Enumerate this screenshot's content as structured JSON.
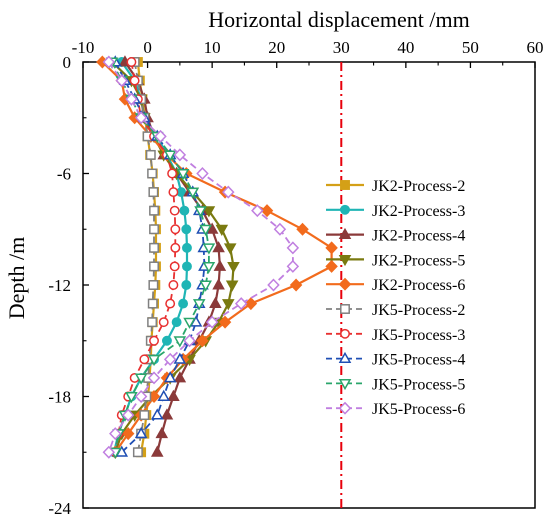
{
  "chart_data": {
    "type": "line",
    "xlabel": "Horizontal displacement /mm",
    "ylabel": "Depth /m",
    "xlim": [
      -10,
      60
    ],
    "ylim": [
      0,
      -24
    ],
    "x_ticks": [
      -10,
      0,
      10,
      20,
      30,
      40,
      50,
      60
    ],
    "y_ticks": [
      0,
      -6,
      -12,
      -18,
      -24
    ],
    "x_axis_position": "top",
    "grid": false,
    "legend_position": "right",
    "reference_line": {
      "x": 30,
      "color": "#e8000b",
      "style": "dash-dot"
    },
    "series": [
      {
        "name": "JK2-Process-2",
        "color": "#d4a017",
        "marker": "square",
        "filled": true,
        "dashed": false,
        "x": [
          -1.5,
          -1.2,
          -0.8,
          -0.4,
          0.0,
          0.4,
          0.8,
          1.0,
          1.2,
          1.3,
          1.3,
          1.3,
          1.2,
          1.0,
          0.8,
          0.6,
          0.5,
          0.3,
          0.1,
          -0.2,
          -0.5,
          -1.0
        ],
        "y": [
          0,
          -1,
          -2,
          -3,
          -4,
          -5,
          -6,
          -7,
          -8,
          -9,
          -10,
          -11,
          -12,
          -13,
          -14,
          -15,
          -16,
          -17,
          -18,
          -19,
          -20,
          -21
        ]
      },
      {
        "name": "JK2-Process-3",
        "color": "#1fb5b5",
        "marker": "circle",
        "filled": true,
        "dashed": false,
        "x": [
          -4.0,
          -2.0,
          -1.0,
          -0.5,
          1.5,
          3.0,
          4.5,
          5.2,
          5.7,
          6.0,
          6.1,
          6.1,
          6.0,
          5.5,
          4.5,
          3.0,
          1.0,
          -1.0,
          -2.5,
          -3.5,
          -4.5,
          -5.2
        ],
        "y": [
          0,
          -1,
          -2,
          -3,
          -4,
          -5,
          -6,
          -7,
          -8,
          -9,
          -10,
          -11,
          -12,
          -13,
          -14,
          -15,
          -16,
          -17,
          -18,
          -19,
          -20,
          -21
        ]
      },
      {
        "name": "JK2-Process-4",
        "color": "#8b3a3a",
        "marker": "triangle-up",
        "filled": true,
        "dashed": false,
        "x": [
          -3.5,
          -1.5,
          -0.5,
          0.0,
          1.0,
          2.5,
          4.5,
          6.5,
          8.5,
          10.0,
          11.0,
          11.2,
          11.0,
          10.5,
          9.5,
          8.0,
          6.5,
          5.0,
          4.0,
          3.0,
          2.2,
          1.5
        ],
        "y": [
          0,
          -1,
          -2,
          -3,
          -4,
          -5,
          -6,
          -7,
          -8,
          -9,
          -10,
          -11,
          -12,
          -13,
          -14,
          -15,
          -16,
          -17,
          -18,
          -19,
          -20,
          -21
        ]
      },
      {
        "name": "JK2-Process-5",
        "color": "#7a7a10",
        "marker": "triangle-down",
        "filled": true,
        "dashed": false,
        "x": [
          -5.5,
          -2.5,
          -1.0,
          -0.5,
          1.0,
          2.5,
          4.5,
          7.0,
          9.5,
          11.5,
          12.8,
          13.3,
          13.1,
          12.5,
          11.0,
          9.0,
          6.5,
          3.5,
          0.5,
          -2.0,
          -4.0,
          -5.0
        ],
        "y": [
          0,
          -1,
          -2,
          -3,
          -4,
          -5,
          -6,
          -7,
          -8,
          -9,
          -10,
          -11,
          -12,
          -13,
          -14,
          -15,
          -16,
          -17,
          -18,
          -19,
          -20,
          -21
        ]
      },
      {
        "name": "JK2-Process-6",
        "color": "#f26b1d",
        "marker": "diamond",
        "filled": true,
        "dashed": false,
        "x": [
          -7.0,
          -4.0,
          -3.5,
          -2.0,
          0.5,
          3.0,
          6.0,
          12.0,
          18.5,
          24.0,
          28.5,
          28.5,
          23.0,
          16.0,
          12.0,
          8.5,
          5.5,
          3.0,
          1.0,
          -1.0,
          -3.0,
          -5.0
        ],
        "y": [
          0,
          -1,
          -2,
          -3,
          -4,
          -5,
          -6,
          -7,
          -8,
          -9,
          -10,
          -11,
          -12,
          -13,
          -14,
          -15,
          -16,
          -17,
          -18,
          -19,
          -20,
          -21
        ]
      },
      {
        "name": "JK5-Process-2",
        "color": "#808080",
        "marker": "square",
        "filled": false,
        "dashed": true,
        "x": [
          -2.0,
          -1.5,
          -1.0,
          -0.5,
          0.0,
          0.5,
          0.7,
          0.9,
          1.0,
          1.0,
          1.0,
          1.0,
          0.9,
          0.8,
          0.7,
          0.5,
          0.3,
          0.1,
          -0.2,
          -0.5,
          -1.0,
          -1.5
        ],
        "y": [
          0,
          -1,
          -2,
          -3,
          -4,
          -5,
          -6,
          -7,
          -8,
          -9,
          -10,
          -11,
          -12,
          -13,
          -14,
          -15,
          -16,
          -17,
          -18,
          -19,
          -20,
          -21
        ]
      },
      {
        "name": "JK5-Process-3",
        "color": "#e83030",
        "marker": "circle",
        "filled": false,
        "dashed": true,
        "x": [
          -2.5,
          -2.0,
          -1.5,
          -1.0,
          1.0,
          3.0,
          3.8,
          4.0,
          4.2,
          4.3,
          4.3,
          4.2,
          4.0,
          3.5,
          2.5,
          1.0,
          -0.5,
          -2.0,
          -3.0,
          -4.0,
          -4.5,
          -5.0
        ],
        "y": [
          0,
          -1,
          -2,
          -3,
          -4,
          -5,
          -6,
          -7,
          -8,
          -9,
          -10,
          -11,
          -12,
          -13,
          -14,
          -15,
          -16,
          -17,
          -18,
          -19,
          -20,
          -21
        ]
      },
      {
        "name": "JK5-Process-4",
        "color": "#1f4fb4",
        "marker": "triangle-up",
        "filled": false,
        "dashed": true,
        "x": [
          -5.0,
          -3.5,
          -2.0,
          -0.5,
          1.5,
          3.5,
          5.5,
          7.0,
          8.0,
          8.5,
          8.7,
          8.8,
          8.5,
          8.0,
          7.5,
          6.5,
          5.0,
          3.5,
          2.5,
          1.5,
          -1.0,
          -4.0
        ],
        "y": [
          0,
          -1,
          -2,
          -3,
          -4,
          -5,
          -6,
          -7,
          -8,
          -9,
          -10,
          -11,
          -12,
          -13,
          -14,
          -15,
          -16,
          -17,
          -18,
          -19,
          -20,
          -21
        ]
      },
      {
        "name": "JK5-Process-5",
        "color": "#2aa66b",
        "marker": "triangle-down",
        "filled": false,
        "dashed": true,
        "x": [
          -5.5,
          -4.0,
          -2.5,
          -1.0,
          1.5,
          3.5,
          5.5,
          7.0,
          8.2,
          9.0,
          9.5,
          9.5,
          9.0,
          8.0,
          6.5,
          5.0,
          1.0,
          -1.0,
          -2.5,
          -3.5,
          -4.5,
          -5.0
        ],
        "y": [
          0,
          -1,
          -2,
          -3,
          -4,
          -5,
          -6,
          -7,
          -8,
          -9,
          -10,
          -11,
          -12,
          -13,
          -14,
          -15,
          -16,
          -17,
          -18,
          -19,
          -20,
          -21
        ]
      },
      {
        "name": "JK5-Process-6",
        "color": "#c07fe0",
        "marker": "diamond",
        "filled": false,
        "dashed": true,
        "x": [
          -6.0,
          -4.0,
          -2.5,
          -1.0,
          2.0,
          5.0,
          8.5,
          12.5,
          17.0,
          20.5,
          22.5,
          22.5,
          19.5,
          14.5,
          10.0,
          6.5,
          3.5,
          1.0,
          -1.0,
          -3.0,
          -5.0,
          -6.0
        ],
        "y": [
          0,
          -1,
          -2,
          -3,
          -4,
          -5,
          -6,
          -7,
          -8,
          -9,
          -10,
          -11,
          -12,
          -13,
          -14,
          -15,
          -16,
          -17,
          -18,
          -19,
          -20,
          -21
        ]
      }
    ]
  }
}
